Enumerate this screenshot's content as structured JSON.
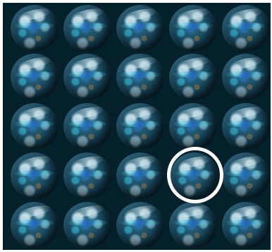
{
  "grid": {
    "rows": 5,
    "columns": 5,
    "item_icon": "earth-globe-icon",
    "background_color": "#04202b"
  },
  "highlight": {
    "row": 4,
    "column": 4,
    "color": "#ffffff",
    "icon": "highlight-circle-icon"
  }
}
